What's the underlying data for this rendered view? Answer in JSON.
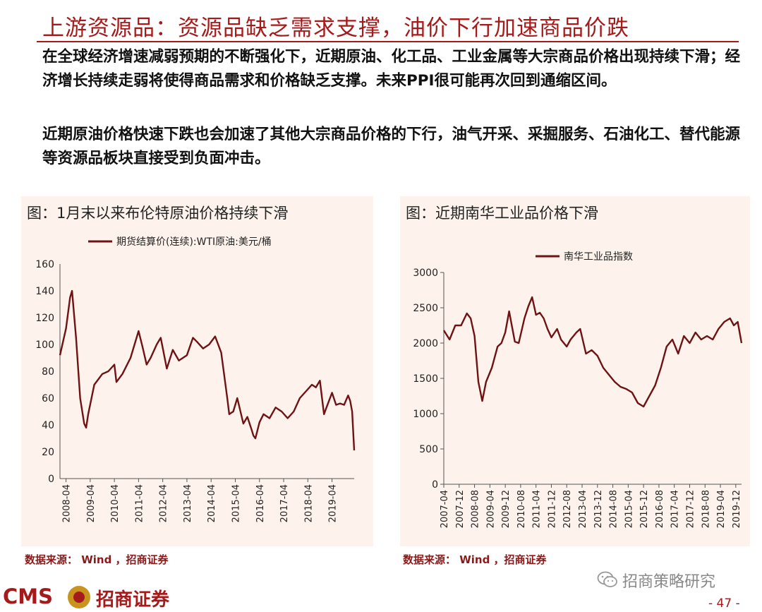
{
  "header": {
    "title": "上游资源品：资源品缺乏需求支撑，油价下行加速商品价跌"
  },
  "body": {
    "paragraph1": "在全球经济增速减弱预期的不断强化下，近期原油、化工品、工业金属等大宗商品价格出现持续下滑；经济增长持续走弱将使得商品需求和价格缺乏支撑。未来PPI很可能再次回到通缩区间。",
    "paragraph2": "近期原油价格快速下跌也会加速了其他大宗商品价格的下行，油气开采、采掘服务、石油化工、替代能源等资源品板块直接受到负面冲击。"
  },
  "footer": {
    "logo_cms": "CMS",
    "logo_name": "招商证券",
    "watermark": "招商策略研究",
    "page_number": "- 47 -"
  },
  "colors": {
    "accent": "#a51a1a",
    "panel_bg": "#fdf3ec",
    "series": "#6e1214"
  },
  "chart_data": [
    {
      "type": "line",
      "panel_title": "图：1月末以来布伦特原油价格持续下滑",
      "source": "数据来源： Wind ，招商证券",
      "title": "",
      "xlabel": "",
      "ylabel": "",
      "ylim": [
        0,
        160
      ],
      "yticks": [
        0,
        20,
        40,
        60,
        80,
        100,
        120,
        140,
        160
      ],
      "xticks": [
        "2008-04",
        "2009-04",
        "2010-04",
        "2011-04",
        "2012-04",
        "2013-04",
        "2014-04",
        "2015-04",
        "2016-04",
        "2017-04",
        "2018-04",
        "2019-04"
      ],
      "grid": false,
      "legend": "top",
      "series": [
        {
          "name": "期货结算价(连续):WTI原油:美元/桶",
          "x": [
            "2008-01",
            "2008-04",
            "2008-06",
            "2008-07",
            "2008-09",
            "2008-11",
            "2009-01",
            "2009-02",
            "2009-03",
            "2009-06",
            "2009-10",
            "2010-01",
            "2010-04",
            "2010-05",
            "2010-08",
            "2010-12",
            "2011-04",
            "2011-06",
            "2011-08",
            "2011-10",
            "2012-01",
            "2012-03",
            "2012-06",
            "2012-09",
            "2012-12",
            "2013-04",
            "2013-07",
            "2013-09",
            "2013-12",
            "2014-03",
            "2014-06",
            "2014-09",
            "2014-12",
            "2015-01",
            "2015-03",
            "2015-05",
            "2015-08",
            "2015-10",
            "2015-12",
            "2016-01",
            "2016-02",
            "2016-04",
            "2016-06",
            "2016-09",
            "2016-12",
            "2017-03",
            "2017-06",
            "2017-09",
            "2017-12",
            "2018-03",
            "2018-06",
            "2018-08",
            "2018-10",
            "2018-12",
            "2019-01",
            "2019-04",
            "2019-06",
            "2019-08",
            "2019-10",
            "2019-12",
            "2020-01",
            "2020-02",
            "2020-03"
          ],
          "values": [
            92,
            112,
            135,
            140,
            105,
            60,
            41,
            38,
            48,
            70,
            78,
            80,
            85,
            72,
            78,
            90,
            110,
            98,
            85,
            90,
            100,
            105,
            82,
            96,
            88,
            92,
            105,
            102,
            97,
            100,
            106,
            94,
            60,
            48,
            50,
            60,
            41,
            46,
            37,
            32,
            30,
            42,
            48,
            45,
            53,
            50,
            45,
            50,
            60,
            65,
            70,
            68,
            73,
            48,
            52,
            64,
            55,
            56,
            55,
            62,
            58,
            50,
            21
          ]
        }
      ]
    },
    {
      "type": "line",
      "panel_title": "图：近期南华工业品价格下滑",
      "source": "数据来源： Wind ，招商证券",
      "title": "",
      "xlabel": "",
      "ylabel": "",
      "ylim": [
        0,
        3000
      ],
      "yticks": [
        0,
        500,
        1000,
        1500,
        2000,
        2500,
        3000
      ],
      "xticks": [
        "2007-04",
        "2007-12",
        "2008-08",
        "2009-04",
        "2009-12",
        "2010-08",
        "2011-04",
        "2011-12",
        "2012-08",
        "2013-04",
        "2013-12",
        "2014-08",
        "2015-04",
        "2015-12",
        "2016-08",
        "2017-04",
        "2017-12",
        "2018-08",
        "2019-04",
        "2019-12"
      ],
      "grid": false,
      "legend": "top",
      "series": [
        {
          "name": "南华工业品指数",
          "x": [
            "2007-04",
            "2007-07",
            "2007-10",
            "2008-01",
            "2008-04",
            "2008-06",
            "2008-08",
            "2008-10",
            "2008-12",
            "2009-02",
            "2009-05",
            "2009-08",
            "2009-10",
            "2009-12",
            "2010-02",
            "2010-05",
            "2010-07",
            "2010-10",
            "2010-12",
            "2011-02",
            "2011-04",
            "2011-06",
            "2011-08",
            "2011-10",
            "2011-12",
            "2012-03",
            "2012-05",
            "2012-08",
            "2012-10",
            "2013-01",
            "2013-03",
            "2013-06",
            "2013-09",
            "2013-12",
            "2014-03",
            "2014-06",
            "2014-09",
            "2014-12",
            "2015-03",
            "2015-06",
            "2015-09",
            "2015-12",
            "2016-03",
            "2016-06",
            "2016-09",
            "2016-12",
            "2017-03",
            "2017-06",
            "2017-09",
            "2017-12",
            "2018-03",
            "2018-06",
            "2018-09",
            "2018-12",
            "2019-03",
            "2019-06",
            "2019-09",
            "2019-11",
            "2020-01",
            "2020-03"
          ],
          "values": [
            2180,
            2050,
            2250,
            2250,
            2420,
            2350,
            2100,
            1450,
            1180,
            1450,
            1650,
            1950,
            2000,
            2150,
            2450,
            2020,
            2000,
            2350,
            2520,
            2650,
            2400,
            2430,
            2350,
            2200,
            2080,
            2200,
            2050,
            1950,
            2050,
            2150,
            2200,
            1850,
            1900,
            1820,
            1650,
            1550,
            1450,
            1380,
            1350,
            1300,
            1150,
            1100,
            1250,
            1400,
            1650,
            1950,
            2050,
            1850,
            2100,
            2000,
            2150,
            2050,
            2100,
            2050,
            2200,
            2300,
            2350,
            2250,
            2300,
            2000
          ]
        }
      ]
    }
  ]
}
